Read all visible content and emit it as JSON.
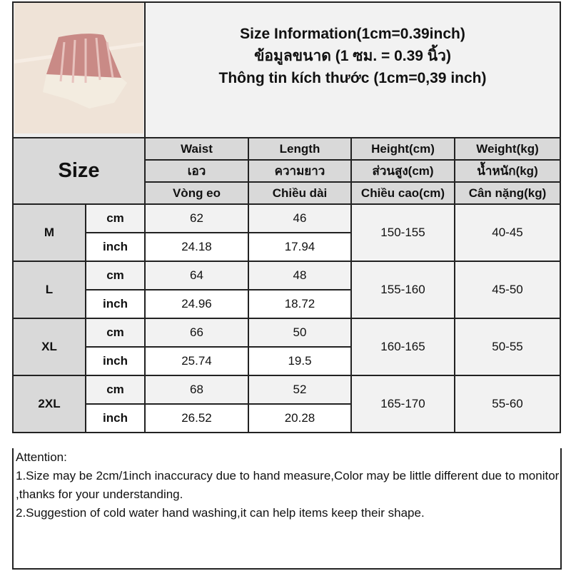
{
  "title_lines": [
    "Size Information(1cm=0.39inch)",
    "ข้อมูลขนาด (1 ซม. = 0.39 นิ้ว)",
    "Thông tin kích thước (1cm=0,39 inch)"
  ],
  "size_header": "Size",
  "columns": [
    [
      "Waist",
      "เอว",
      "Vòng eo"
    ],
    [
      "Length",
      "ความยาว",
      "Chiều dài"
    ],
    [
      "Height(cm)",
      "ส่วนสูง(cm)",
      "Chiều cao(cm)"
    ],
    [
      "Weight(kg)",
      "น้ำหนัก(kg)",
      "Cân nặng(kg)"
    ]
  ],
  "units": {
    "cm": "cm",
    "inch": "inch"
  },
  "rows": [
    {
      "size": "M",
      "waist_cm": "62",
      "length_cm": "46",
      "waist_inch": "24.18",
      "length_inch": "17.94",
      "height": "150-155",
      "weight": "40-45"
    },
    {
      "size": "L",
      "waist_cm": "64",
      "length_cm": "48",
      "waist_inch": "24.96",
      "length_inch": "18.72",
      "height": "155-160",
      "weight": "45-50"
    },
    {
      "size": "XL",
      "waist_cm": "66",
      "length_cm": "50",
      "waist_inch": "25.74",
      "length_inch": "19.5",
      "height": "160-165",
      "weight": "50-55"
    },
    {
      "size": "2XL",
      "waist_cm": "68",
      "length_cm": "52",
      "waist_inch": "26.52",
      "length_inch": "20.28",
      "height": "165-170",
      "weight": "55-60"
    }
  ],
  "attention": [
    "Attention:",
    "1.Size may be 2cm/1inch inaccuracy due to hand measure,Color may be little different due to monitor ,thanks for your understanding.",
    "2.Suggestion of cold water hand washing,it can help items keep their shape."
  ],
  "colors": {
    "header_gray": "#d9d9d9",
    "light_gray": "#f2f2f2",
    "border": "#222222",
    "product_pink": "#c98a86",
    "lace_white": "#f3ece0"
  }
}
